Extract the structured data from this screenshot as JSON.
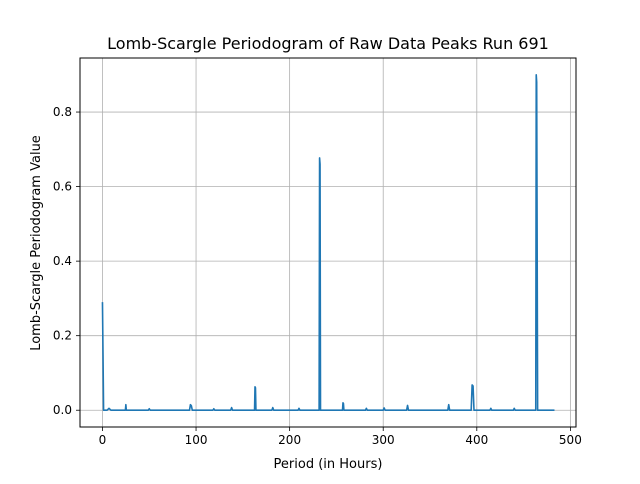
{
  "chart_data": {
    "type": "line",
    "title": "Lomb-Scargle Periodogram of Raw Data Peaks Run 691",
    "xlabel": "Period (in Hours)",
    "ylabel": "Lomb-Scargle Periodogram Value",
    "xlim": [
      -24,
      506
    ],
    "ylim": [
      -0.045,
      0.945
    ],
    "xticks": [
      0,
      100,
      200,
      300,
      400,
      500
    ],
    "yticks": [
      0.0,
      0.2,
      0.4,
      0.6,
      0.8
    ],
    "xtick_labels": [
      "0",
      "100",
      "200",
      "300",
      "400",
      "500"
    ],
    "ytick_labels": [
      "0.0",
      "0.2",
      "0.4",
      "0.6",
      "0.8"
    ],
    "grid": true,
    "line_color": "#1f77b4",
    "series": [
      {
        "x": [
          0,
          0.6,
          1.2,
          5,
          7,
          9,
          24.5,
          25,
          25.5,
          49,
          50,
          51,
          93,
          94,
          95,
          96,
          118,
          119,
          120,
          137,
          138,
          139,
          162.5,
          163,
          163.5,
          164,
          181,
          182,
          183,
          209,
          210,
          211,
          231.5,
          232,
          232.5,
          233,
          256.5,
          257,
          257.5,
          258,
          281,
          282,
          283,
          300,
          301,
          302,
          325,
          326,
          327,
          369,
          370,
          371,
          394,
          395,
          396,
          397,
          414,
          415,
          416,
          439,
          440,
          441,
          463,
          463.5,
          464,
          465,
          483
        ],
        "y": [
          0.29,
          0.15,
          0.0,
          0.0,
          0.005,
          0.0,
          0.0,
          0.015,
          0.0,
          0.0,
          0.004,
          0.0,
          0.0,
          0.015,
          0.012,
          0.0,
          0.0,
          0.004,
          0.0,
          0.0,
          0.007,
          0.0,
          0.0,
          0.063,
          0.06,
          0.0,
          0.0,
          0.007,
          0.0,
          0.0,
          0.005,
          0.0,
          0.0,
          0.677,
          0.66,
          0.0,
          0.0,
          0.02,
          0.018,
          0.0,
          0.0,
          0.005,
          0.0,
          0.0,
          0.006,
          0.0,
          0.0,
          0.013,
          0.0,
          0.0,
          0.015,
          0.0,
          0.0,
          0.068,
          0.065,
          0.0,
          0.0,
          0.005,
          0.0,
          0.0,
          0.005,
          0.0,
          0.0,
          0.9,
          0.88,
          0.0,
          0.0
        ]
      }
    ]
  }
}
